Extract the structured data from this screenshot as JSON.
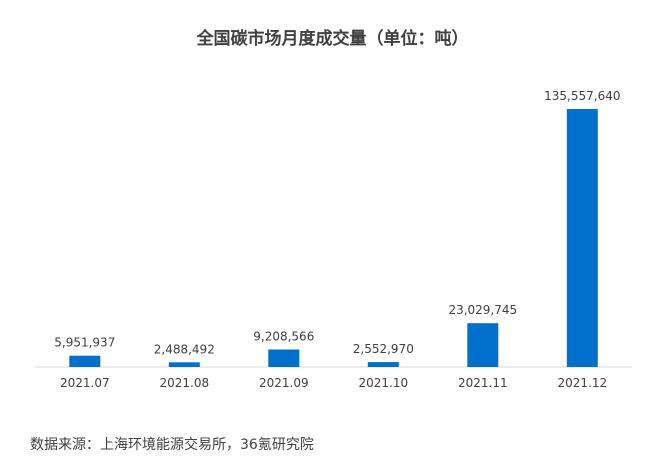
{
  "chart_data": {
    "type": "bar",
    "title": "全国碳市场月度成交量（单位：吨）",
    "categories": [
      "2021.07",
      "2021.08",
      "2021.09",
      "2021.10",
      "2021.11",
      "2021.12"
    ],
    "values": [
      5951937,
      2488492,
      9208566,
      2552970,
      23029745,
      135557640
    ],
    "value_labels": [
      "5,951,937",
      "2,488,492",
      "9,208,566",
      "2,552,970",
      "23,029,745",
      "135,557,640"
    ],
    "bar_color": "#0070CC",
    "ylim": [
      0,
      135557640
    ],
    "grid": false,
    "legend": "none"
  },
  "source": "数据来源：上海环境能源交易所，36氪研究院"
}
